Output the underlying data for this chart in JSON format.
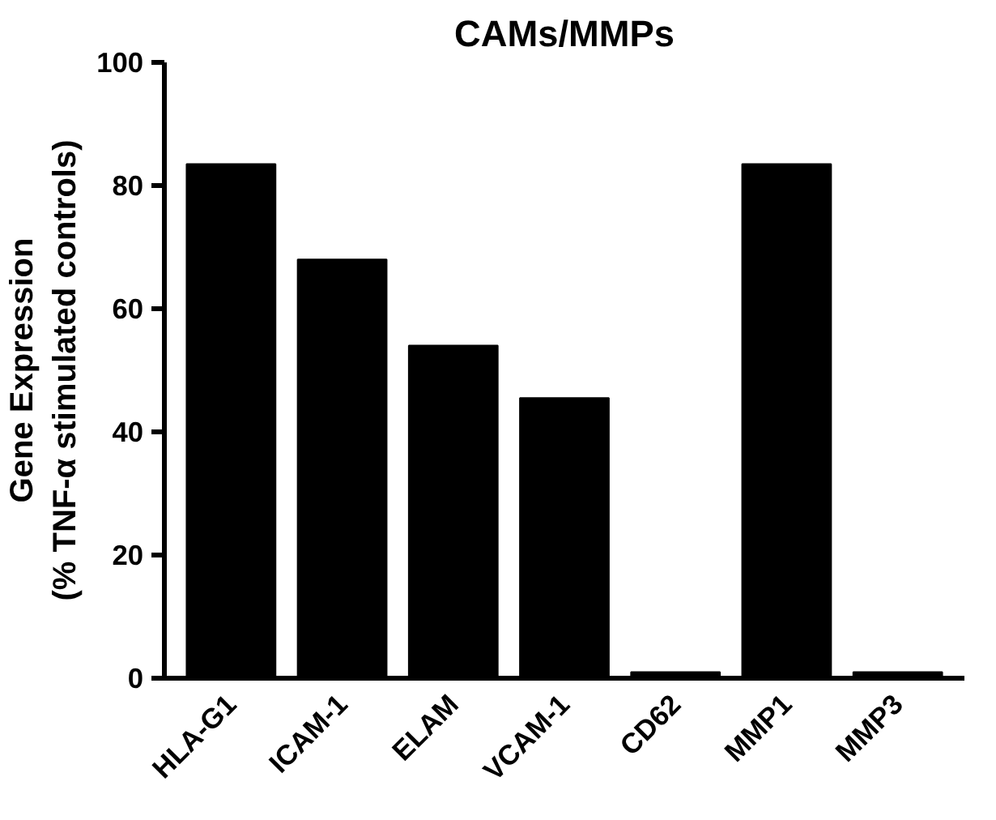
{
  "chart_data": {
    "type": "bar",
    "title": "CAMs/MMPs",
    "ylabel": "Gene Expression\n(% TNF-α stimulated controls)",
    "categories": [
      "HLA-G1",
      "ICAM-1",
      "ELAM",
      "VCAM-1",
      "CD62",
      "MMP1",
      "MMP3"
    ],
    "values": [
      83.5,
      68,
      54,
      45.5,
      1,
      83.5,
      1
    ],
    "color": "#000000",
    "ylim": [
      0,
      100
    ],
    "yticks": [
      0,
      20,
      40,
      60,
      80,
      100
    ],
    "grid": false
  }
}
